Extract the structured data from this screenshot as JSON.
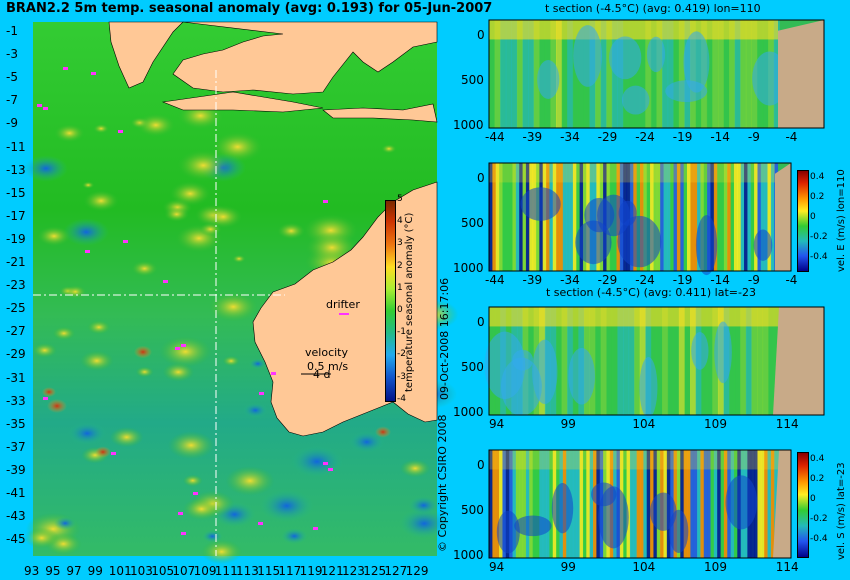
{
  "chart_data": [
    {
      "type": "heatmap",
      "title": "BRAN2.2 5m temp. seasonal anomaly (avg: 0.193) for 05-Jun-2007",
      "y_ticks": [
        "-1",
        "-3",
        "-5",
        "-7",
        "-9",
        "-11",
        "-13",
        "-15",
        "-17",
        "-19",
        "-21",
        "-23",
        "-25",
        "-27",
        "-29",
        "-31",
        "-33",
        "-35",
        "-37",
        "-39",
        "-41",
        "-43",
        "-45"
      ],
      "x_ticks": [
        "93",
        "95",
        "97",
        "99",
        "101",
        "103",
        "105",
        "107",
        "109",
        "111",
        "113",
        "115",
        "117",
        "119",
        "121",
        "123",
        "125",
        "127",
        "129"
      ],
      "ylim": [
        -46,
        0
      ],
      "xlim": [
        92,
        130
      ],
      "colorbar": {
        "label": "temperature seasonal anomaly (°C)",
        "ticks": [
          "5",
          "4",
          "3",
          "2",
          "1",
          "0",
          "-1",
          "-2",
          "-3",
          "-4"
        ],
        "range": [
          -4,
          5
        ]
      },
      "annotations": {
        "drifter": "drifter",
        "velocity": "velocity",
        "velocity_value": "0.5 m/s",
        "velocity_value2": "4 d"
      },
      "crosshair": {
        "lon": 110,
        "lat": -23
      }
    },
    {
      "type": "heatmap",
      "title": "t section (-4.5°C) (avg: 0.419) lon=110",
      "x_ticks": [
        "-44",
        "-39",
        "-34",
        "-29",
        "-24",
        "-19",
        "-14",
        "-9",
        "-4"
      ],
      "y_ticks": [
        "0",
        "500",
        "1000"
      ]
    },
    {
      "type": "heatmap",
      "title": "",
      "x_ticks": [
        "-44",
        "-39",
        "-34",
        "-29",
        "-24",
        "-19",
        "-14",
        "-9",
        "-4"
      ],
      "y_ticks": [
        "0",
        "500",
        "1000"
      ],
      "colorbar": {
        "label": "vel. E (m/s) lon=110",
        "ticks": [
          "0.4",
          "0.2",
          "0",
          "-0.2",
          "-0.4"
        ],
        "range": [
          -0.5,
          0.5
        ]
      }
    },
    {
      "type": "heatmap",
      "title": "t section (-4.5°C) (avg: 0.411) lat=-23",
      "x_ticks": [
        "94",
        "99",
        "104",
        "109",
        "114"
      ],
      "y_ticks": [
        "0",
        "500",
        "1000"
      ]
    },
    {
      "type": "heatmap",
      "title": "",
      "x_ticks": [
        "94",
        "99",
        "104",
        "109",
        "114"
      ],
      "y_ticks": [
        "0",
        "500",
        "1000"
      ],
      "colorbar": {
        "label": "vel. S (m/s) lat=-23",
        "ticks": [
          "0.4",
          "0.2",
          "0",
          "-0.2",
          "-0.4"
        ],
        "range": [
          -0.5,
          0.5
        ]
      }
    }
  ],
  "copyright": "© Copyright CSIRO 2008",
  "timestamp": "09-Oct-2008 16:17:06",
  "colors": {
    "background": "#00ccff",
    "land": "#ffc896",
    "section_land": "#c8aa88",
    "drifter": "#ff33ff"
  }
}
